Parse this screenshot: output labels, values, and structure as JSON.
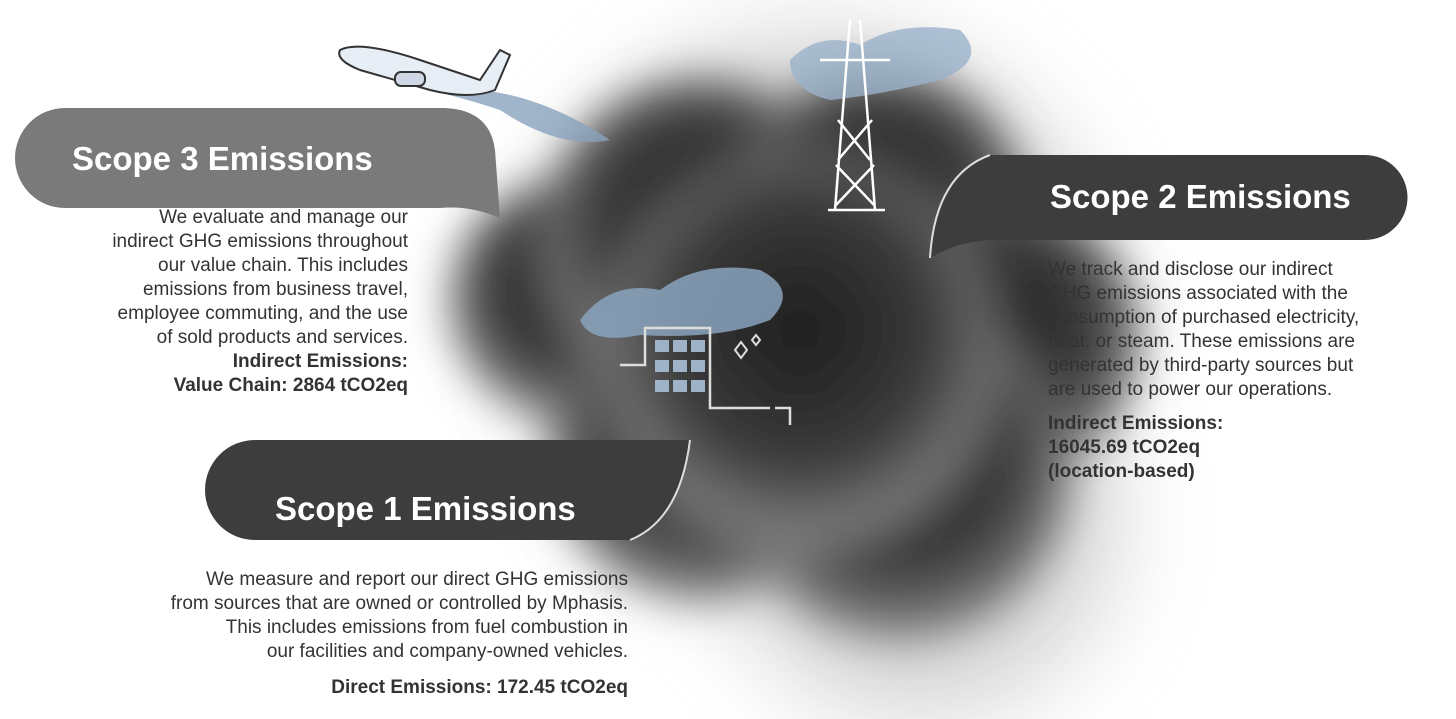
{
  "scope3": {
    "title": "Scope 3 Emissions",
    "body": [
      "We evaluate and manage our",
      "indirect GHG emissions throughout",
      "our value chain. This includes",
      "emissions from business travel,",
      "employee commuting, and the use",
      "of sold products and services."
    ],
    "metric": [
      "Indirect Emissions:",
      "Value Chain: 2864 tCO2eq"
    ]
  },
  "scope2": {
    "title": "Scope 2 Emissions",
    "body": [
      "We track and disclose our indirect",
      "GHG emissions associated with the",
      "consumption of purchased electricity,",
      "heat, or steam. These emissions are",
      "generated by third-party sources but",
      "are used to power our operations."
    ],
    "metric": [
      "Indirect Emissions:",
      "16045.69 tCO2eq",
      "(location-based)"
    ]
  },
  "scope1": {
    "title": "Scope 1 Emissions",
    "body": [
      "We measure and report our direct GHG emissions",
      "from sources that are owned or controlled by Mphasis.",
      "This includes emissions from fuel combustion in",
      "our facilities and company-owned vehicles."
    ],
    "metric": [
      "Direct Emissions: 172.45 tCO2eq"
    ]
  }
}
